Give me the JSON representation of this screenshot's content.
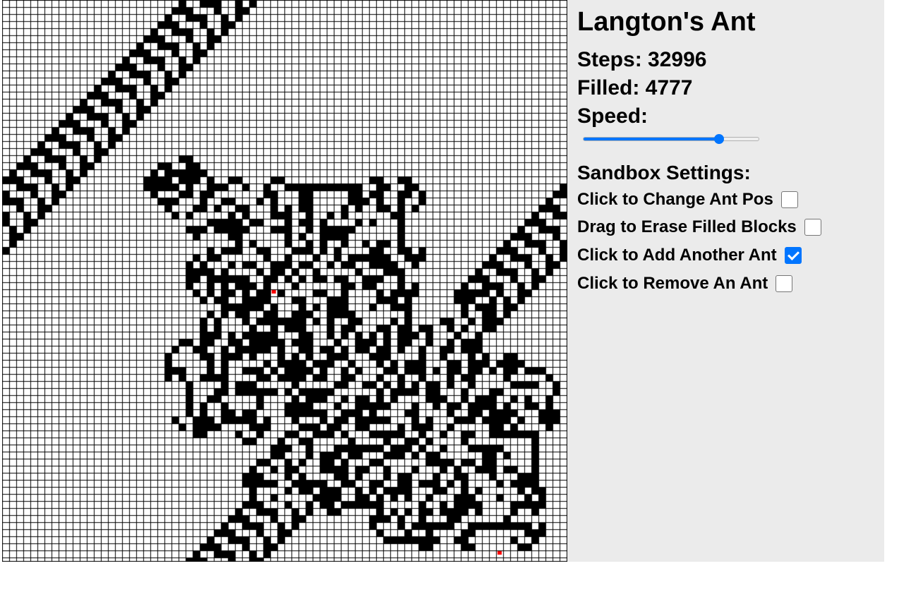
{
  "app": {
    "title": "Langton's Ant"
  },
  "stats": {
    "steps_label": "Steps: 32996",
    "filled_label": "Filled: 4777",
    "speed_label": "Speed:"
  },
  "speed": {
    "value_fraction": 0.79
  },
  "sandbox": {
    "heading": "Sandbox Settings:",
    "options": [
      {
        "label": "Click to Change Ant Pos",
        "checked": false
      },
      {
        "label": "Drag to Erase Filled Blocks",
        "checked": false
      },
      {
        "label": "Click to Add Another Ant",
        "checked": true
      },
      {
        "label": "Click to Remove An Ant",
        "checked": false
      }
    ]
  },
  "grid": {
    "cell_color_filled": "#000000",
    "cell_color_empty": "#ffffff",
    "grid_line_color": "#000000",
    "ant_color": "#ff0000"
  }
}
